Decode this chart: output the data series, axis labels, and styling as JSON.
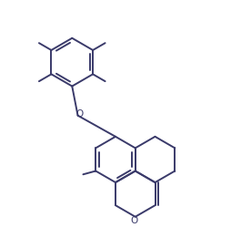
{
  "line_color": "#3a3a6a",
  "line_width": 1.4,
  "bg_color": "#ffffff",
  "figsize": [
    2.54,
    2.72
  ],
  "dpi": 100
}
